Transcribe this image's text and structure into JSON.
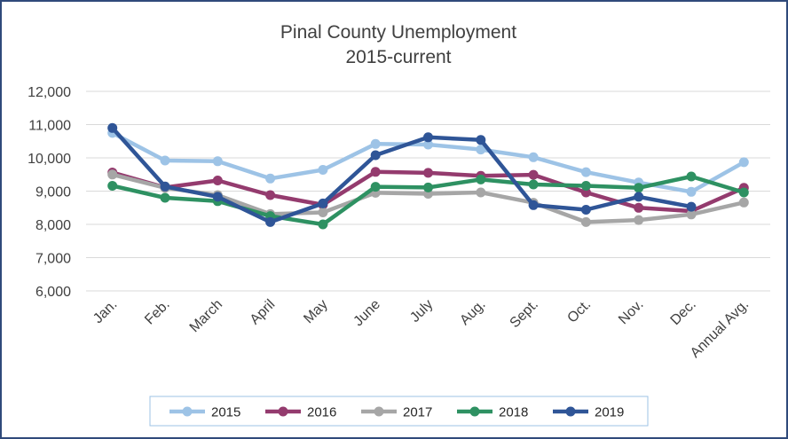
{
  "chart_data": {
    "type": "line",
    "title": "Pinal County Unemployment",
    "subtitle": "2015-current",
    "categories": [
      "Jan.",
      "Feb.",
      "March",
      "April",
      "May",
      "June",
      "July",
      "Aug.",
      "Sept.",
      "Oct.",
      "Nov.",
      "Dec.",
      "Annual Avg."
    ],
    "ylim": [
      6000,
      12000
    ],
    "yticks": [
      "6,000",
      "7,000",
      "8,000",
      "9,000",
      "10,000",
      "11,000",
      "12,000"
    ],
    "grid": true,
    "legend_position": "bottom",
    "series": [
      {
        "name": "2015",
        "color": "#9dc3e6",
        "values": [
          10750,
          9920,
          9900,
          9380,
          9640,
          10420,
          10400,
          10250,
          10020,
          9570,
          9260,
          8980,
          9870
        ]
      },
      {
        "name": "2016",
        "color": "#943b6e",
        "values": [
          9560,
          9110,
          9320,
          8880,
          8590,
          9580,
          9550,
          9460,
          9490,
          8960,
          8500,
          8400,
          9100
        ]
      },
      {
        "name": "2017",
        "color": "#a6a6a6",
        "values": [
          9500,
          9100,
          8880,
          8310,
          8360,
          8950,
          8920,
          8960,
          8650,
          8070,
          8130,
          8300,
          8660
        ]
      },
      {
        "name": "2018",
        "color": "#2e9162",
        "values": [
          9160,
          8800,
          8700,
          8250,
          8000,
          9130,
          9110,
          9350,
          9200,
          9160,
          9100,
          9440,
          8960
        ]
      },
      {
        "name": "2019",
        "color": "#2f5597",
        "values": [
          10900,
          9140,
          8830,
          8070,
          8630,
          10080,
          10620,
          10540,
          8580,
          8440,
          8830,
          8530,
          null
        ]
      }
    ]
  }
}
